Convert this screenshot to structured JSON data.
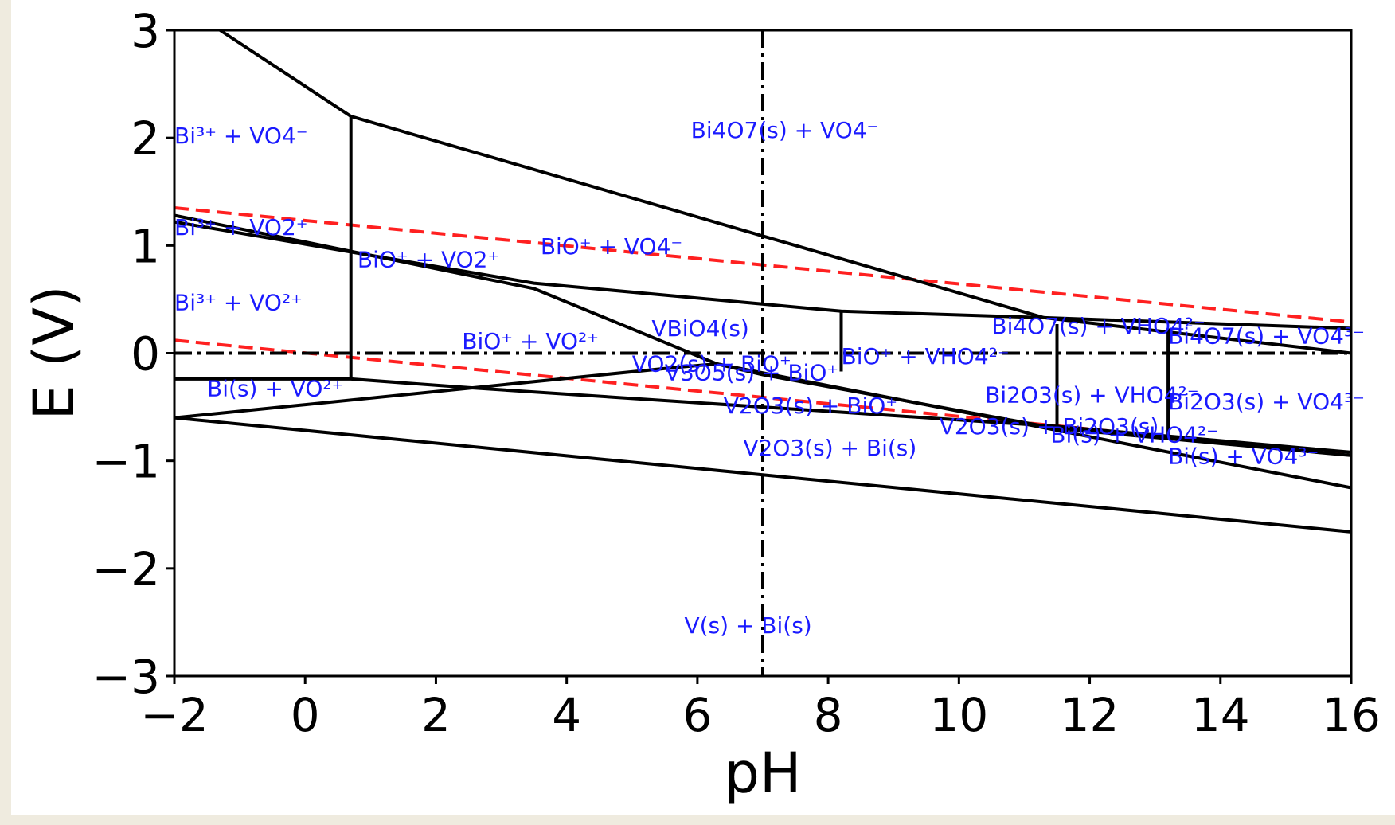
{
  "chart_data": {
    "type": "line",
    "title": "",
    "xlabel": "pH",
    "ylabel": "E (V)",
    "xlim": [
      -2,
      16
    ],
    "ylim": [
      -3,
      3
    ],
    "xticks": [
      "−2",
      "0",
      "2",
      "4",
      "6",
      "8",
      "10",
      "12",
      "14",
      "16"
    ],
    "yticks": [
      "−3",
      "−2",
      "−1",
      "0",
      "1",
      "2",
      "3"
    ],
    "grid": false,
    "colors": {
      "boundary": "#000000",
      "water": "#ff2020",
      "label": "#1a1aff"
    },
    "boundaries": [
      [
        [
          -1.3,
          3.0
        ],
        [
          0.7,
          2.2
        ],
        [
          11.3,
          0.33
        ],
        [
          16,
          0.0
        ]
      ],
      [
        [
          0.7,
          2.2
        ],
        [
          0.7,
          -0.25
        ]
      ],
      [
        [
          -2,
          1.28
        ],
        [
          3.5,
          0.6
        ],
        [
          6.3,
          -0.1
        ]
      ],
      [
        [
          -2,
          1.22
        ],
        [
          3.5,
          0.65
        ],
        [
          8.2,
          0.39
        ],
        [
          11.3,
          0.33
        ],
        [
          16,
          0.23
        ]
      ],
      [
        [
          8.2,
          0.39
        ],
        [
          8.2,
          -0.17
        ]
      ],
      [
        [
          11.5,
          0.27
        ],
        [
          11.5,
          -0.68
        ]
      ],
      [
        [
          13.2,
          0.23
        ],
        [
          13.2,
          -0.8
        ]
      ],
      [
        [
          -2,
          -0.6
        ],
        [
          5.7,
          -0.13
        ],
        [
          6.3,
          -0.1
        ],
        [
          7.0,
          -0.2
        ],
        [
          11.5,
          -0.7
        ],
        [
          16,
          -0.95
        ]
      ],
      [
        [
          6.3,
          -0.1
        ],
        [
          16,
          -1.25
        ]
      ],
      [
        [
          -2,
          -0.24
        ],
        [
          0.7,
          -0.24
        ],
        [
          2.5,
          -0.32
        ],
        [
          7.0,
          -0.5
        ],
        [
          11.5,
          -0.68
        ],
        [
          16,
          -0.92
        ]
      ],
      [
        [
          -2,
          -0.6
        ],
        [
          16,
          -1.66
        ]
      ]
    ],
    "water_lines": [
      [
        [
          -2,
          1.35
        ],
        [
          16,
          0.29
        ]
      ],
      [
        [
          -2,
          0.12
        ],
        [
          16,
          -0.94
        ]
      ]
    ],
    "reference_lines": {
      "vertical_x": 7,
      "horizontal_y": 0
    },
    "region_labels": [
      {
        "text": "Bi³⁺ + VO4⁻",
        "x": -2.0,
        "y": 1.95
      },
      {
        "text": "Bi³⁺ + VO2⁺",
        "x": -2.0,
        "y": 1.1
      },
      {
        "text": "Bi³⁺ + VO²⁺",
        "x": -2.0,
        "y": 0.4
      },
      {
        "text": "Bi(s) + VO²⁺",
        "x": -1.5,
        "y": -0.4
      },
      {
        "text": "BiO⁺ + VO2⁺",
        "x": 0.8,
        "y": 0.8
      },
      {
        "text": "BiO⁺ + VO4⁻",
        "x": 3.6,
        "y": 0.92
      },
      {
        "text": "Bi4O7(s) + VO4⁻",
        "x": 5.9,
        "y": 2.0
      },
      {
        "text": "BiO⁺ + VO²⁺",
        "x": 2.4,
        "y": 0.04
      },
      {
        "text": "VBiO4(s)",
        "x": 5.3,
        "y": 0.16
      },
      {
        "text": "VO2(s) + BiO⁺",
        "x": 5.0,
        "y": -0.17
      },
      {
        "text": "V3O5(s) + BiO⁺",
        "x": 5.5,
        "y": -0.25
      },
      {
        "text": "BiO⁺ + VHO4²⁻",
        "x": 8.2,
        "y": -0.1
      },
      {
        "text": "V2O3(s) + BiO⁺",
        "x": 6.4,
        "y": -0.56
      },
      {
        "text": "V2O3(s) + Bi(s)",
        "x": 6.7,
        "y": -0.95
      },
      {
        "text": "Bi4O7(s) + VHO4²⁻",
        "x": 10.5,
        "y": 0.18
      },
      {
        "text": "Bi4O7(s) + VO4³⁻",
        "x": 13.2,
        "y": 0.09
      },
      {
        "text": "Bi2O3(s) + VHO4²⁻",
        "x": 10.4,
        "y": -0.46
      },
      {
        "text": "Bi2O3(s) + VO4³⁻",
        "x": 13.2,
        "y": -0.52
      },
      {
        "text": "V2O3(s) + Bi2O3(s)",
        "x": 9.7,
        "y": -0.75
      },
      {
        "text": "Bi(s) + VHO4²⁻",
        "x": 11.4,
        "y": -0.83
      },
      {
        "text": "Bi(s) + VO4³⁻",
        "x": 13.2,
        "y": -1.03
      },
      {
        "text": "V(s) + Bi(s)",
        "x": 5.8,
        "y": -2.6
      }
    ]
  }
}
